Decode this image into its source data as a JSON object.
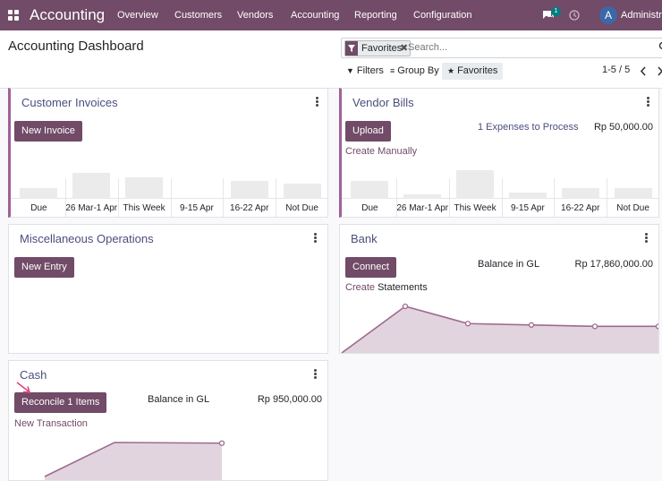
{
  "navbar": {
    "brand": "Accounting",
    "menu": [
      "Overview",
      "Customers",
      "Vendors",
      "Accounting",
      "Reporting",
      "Configuration"
    ],
    "chat_count": "1",
    "avatar_letter": "A",
    "user_name": "Administrator",
    "bg_color": "#714b67"
  },
  "control_panel": {
    "title": "Accounting Dashboard",
    "facet_label": "Favorites",
    "search_placeholder": "Search...",
    "filters_label": "Filters",
    "group_by_label": "Group By",
    "favorites_label": "Favorites",
    "pager": "1-5 / 5"
  },
  "cards": {
    "customer_invoices": {
      "title": "Customer Invoices",
      "button": "New Invoice",
      "chart": {
        "categories": [
          "Due",
          "26 Mar-1 Apr",
          "This Week",
          "9-15 Apr",
          "16-22 Apr",
          "Not Due"
        ],
        "values": [
          0.35,
          0.85,
          0.7,
          0,
          0.6,
          0.5
        ]
      }
    },
    "vendor_bills": {
      "title": "Vendor Bills",
      "button": "Upload",
      "link": "Create Manually",
      "expenses_link": "1 Expenses to Process",
      "amount": "Rp 50,000.00",
      "chart": {
        "categories": [
          "Due",
          "26 Mar-1 Apr",
          "This Week",
          "9-15 Apr",
          "16-22 Apr",
          "Not Due"
        ],
        "values": [
          0.6,
          0.15,
          0.95,
          0.2,
          0.35,
          0.35
        ]
      }
    },
    "misc": {
      "title": "Miscellaneous Operations",
      "button": "New Entry"
    },
    "bank": {
      "title": "Bank",
      "button": "Connect",
      "link_a": "Create",
      "link_b": "Statements",
      "balance_label": "Balance in GL",
      "amount": "Rp 17,860,000.00",
      "line_values": [
        0,
        1,
        0.63,
        0.6,
        0.57,
        0.57
      ]
    },
    "cash": {
      "title": "Cash",
      "button": "Reconcile 1 Items",
      "link": "New Transaction",
      "balance_label": "Balance in GL",
      "amount": "Rp 950,000.00",
      "line_values": [
        0,
        1,
        0.98
      ]
    }
  }
}
